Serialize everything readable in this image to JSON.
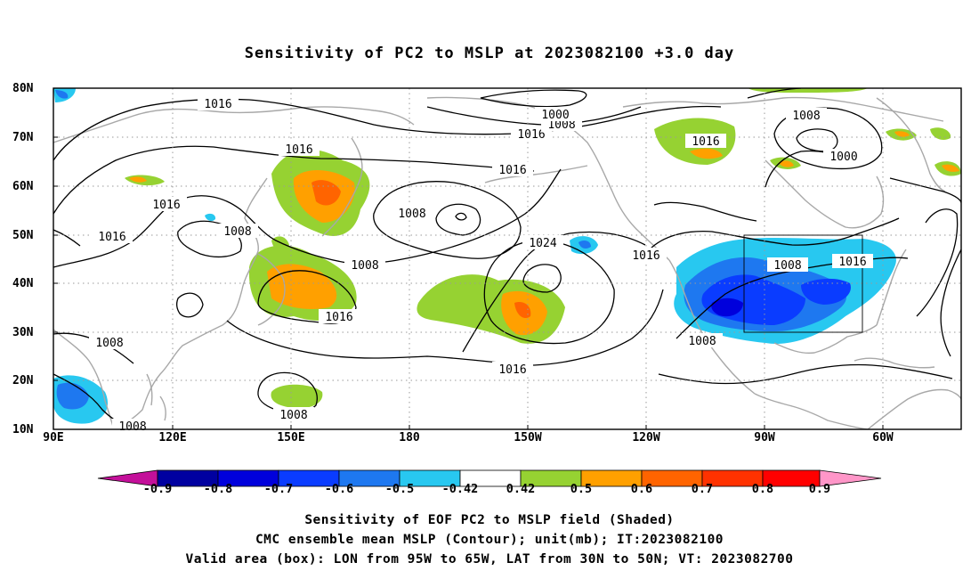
{
  "title": "Sensitivity of PC2 to MSLP at 2023082100 +3.0 day",
  "captions": [
    "Sensitivity of EOF PC2 to MSLP field (Shaded)",
    "CMC ensemble mean MSLP (Contour); unit(mb); IT:2023082100",
    "Valid area (box): LON from 95W to 65W, LAT from 30N to 50N; VT: 2023082700"
  ],
  "lat_labels": [
    "80N",
    "70N",
    "60N",
    "50N",
    "40N",
    "30N",
    "20N",
    "10N"
  ],
  "lon_labels": [
    "90E",
    "120E",
    "150E",
    "180",
    "150W",
    "120W",
    "90W",
    "60W"
  ],
  "contour_labels": [
    "1016",
    "1016",
    "1016",
    "1016",
    "1016",
    "1016",
    "1016",
    "1016",
    "1016",
    "1016",
    "1016",
    "1008",
    "1008",
    "1008",
    "1008",
    "1008",
    "1008",
    "1008",
    "1008",
    "1008",
    "1008",
    "1000",
    "1000",
    "1024"
  ],
  "colorbar": {
    "labels": [
      "-0.9",
      "-0.8",
      "-0.7",
      "-0.6",
      "-0.5",
      "-0.42",
      "0.42",
      "0.5",
      "0.6",
      "0.7",
      "0.8",
      "0.9"
    ],
    "colors": [
      "#c4109a",
      "#0000a0",
      "#0000dc",
      "#0a3cff",
      "#1e78f0",
      "#28c8f0",
      "#ffffff",
      "#96d232",
      "#ffa000",
      "#ff6400",
      "#ff3200",
      "#ff0000",
      "#ff96c8"
    ]
  },
  "valid_box": {
    "lon_range": "95W to 65W",
    "lat_range": "30N to 50N"
  }
}
